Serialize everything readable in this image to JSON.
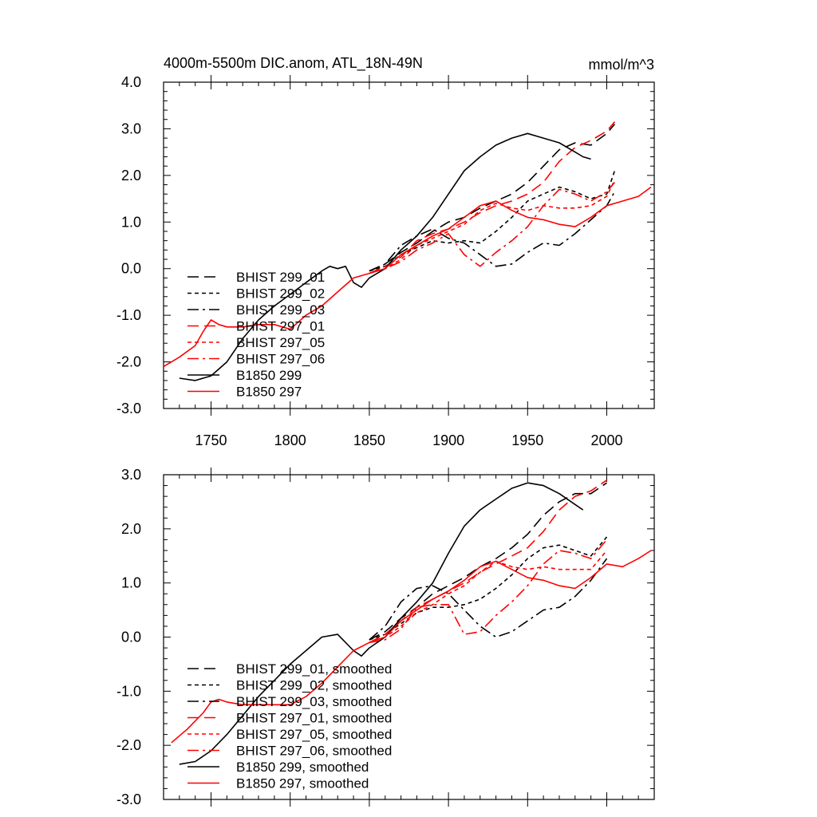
{
  "chart_data": [
    {
      "type": "line",
      "title": "4000m-5500m DIC.anom, ATL_18N-49N",
      "units": "mmol/m^3",
      "xlim": [
        1720,
        2030
      ],
      "ylim": [
        -3.0,
        4.0
      ],
      "xticks": [
        1750,
        1800,
        1850,
        1900,
        1950,
        2000
      ],
      "yticks": [
        -3.0,
        -2.0,
        -1.0,
        0.0,
        1.0,
        2.0,
        3.0,
        4.0
      ],
      "ytick_labels": [
        "-3.0",
        "-2.0",
        "-1.0",
        "0.0",
        "1.0",
        "2.0",
        "3.0",
        "4.0"
      ],
      "legend_position": "lower-left",
      "series": [
        {
          "name": "BHIST 299_01",
          "color": "#000000",
          "dash": "long-dash",
          "x": [
            1850,
            1860,
            1870,
            1880,
            1890,
            1900,
            1910,
            1920,
            1930,
            1940,
            1950,
            1960,
            1970,
            1980,
            1990,
            2000,
            2005
          ],
          "y": [
            -0.05,
            0.1,
            0.35,
            0.55,
            0.8,
            1.0,
            1.1,
            1.3,
            1.45,
            1.6,
            1.85,
            2.2,
            2.55,
            2.7,
            2.65,
            2.9,
            3.1
          ]
        },
        {
          "name": "BHIST 299_02",
          "color": "#000000",
          "dash": "short-dash",
          "x": [
            1850,
            1860,
            1870,
            1880,
            1890,
            1900,
            1910,
            1920,
            1930,
            1940,
            1950,
            1960,
            1970,
            1980,
            1990,
            2000,
            2005
          ],
          "y": [
            -0.05,
            0.05,
            0.3,
            0.45,
            0.6,
            0.55,
            0.6,
            0.55,
            0.8,
            1.1,
            1.45,
            1.6,
            1.75,
            1.65,
            1.5,
            1.6,
            2.1
          ]
        },
        {
          "name": "BHIST 299_03",
          "color": "#000000",
          "dash": "dash-dot",
          "x": [
            1850,
            1860,
            1870,
            1880,
            1890,
            1900,
            1910,
            1920,
            1930,
            1940,
            1950,
            1960,
            1970,
            1980,
            1990,
            2000,
            2005
          ],
          "y": [
            -0.05,
            0.1,
            0.5,
            0.7,
            0.85,
            0.65,
            0.55,
            0.3,
            0.05,
            0.1,
            0.35,
            0.55,
            0.5,
            0.75,
            1.05,
            1.35,
            1.65
          ]
        },
        {
          "name": "BHIST 297_01",
          "color": "#ff0000",
          "dash": "long-dash",
          "x": [
            1850,
            1860,
            1870,
            1880,
            1890,
            1900,
            1910,
            1920,
            1930,
            1940,
            1950,
            1960,
            1970,
            1980,
            1990,
            2000,
            2005
          ],
          "y": [
            -0.1,
            0.05,
            0.25,
            0.6,
            0.75,
            0.85,
            1.0,
            1.2,
            1.35,
            1.45,
            1.6,
            1.85,
            2.3,
            2.6,
            2.75,
            2.95,
            3.15
          ]
        },
        {
          "name": "BHIST 297_05",
          "color": "#ff0000",
          "dash": "short-dash",
          "x": [
            1850,
            1860,
            1870,
            1880,
            1890,
            1900,
            1910,
            1920,
            1930,
            1940,
            1950,
            1960,
            1970,
            1980,
            1990,
            2000,
            2005
          ],
          "y": [
            -0.1,
            0.0,
            0.2,
            0.5,
            0.65,
            0.8,
            0.95,
            1.25,
            1.4,
            1.3,
            1.25,
            1.35,
            1.3,
            1.3,
            1.35,
            1.55,
            1.9
          ]
        },
        {
          "name": "BHIST 297_06",
          "color": "#ff0000",
          "dash": "dash-dot",
          "x": [
            1850,
            1860,
            1870,
            1880,
            1890,
            1900,
            1910,
            1920,
            1930,
            1940,
            1950,
            1960,
            1970,
            1980,
            1990,
            2000,
            2005
          ],
          "y": [
            -0.1,
            0.0,
            0.15,
            0.4,
            0.55,
            0.75,
            0.3,
            0.05,
            0.35,
            0.6,
            0.9,
            1.35,
            1.7,
            1.6,
            1.45,
            1.65,
            1.85
          ]
        },
        {
          "name": "B1850 299",
          "color": "#000000",
          "dash": "solid",
          "x": [
            1730,
            1740,
            1750,
            1760,
            1770,
            1780,
            1790,
            1800,
            1810,
            1820,
            1825,
            1830,
            1835,
            1840,
            1845,
            1850,
            1860,
            1870,
            1880,
            1890,
            1900,
            1910,
            1920,
            1930,
            1940,
            1950,
            1960,
            1970,
            1980,
            1985,
            1990
          ],
          "y": [
            -2.35,
            -2.4,
            -2.3,
            -2.0,
            -1.5,
            -1.1,
            -0.8,
            -0.55,
            -0.3,
            -0.05,
            0.05,
            0.0,
            0.05,
            -0.3,
            -0.4,
            -0.2,
            0.0,
            0.4,
            0.7,
            1.1,
            1.6,
            2.1,
            2.4,
            2.65,
            2.8,
            2.9,
            2.8,
            2.7,
            2.5,
            2.4,
            2.35
          ]
        },
        {
          "name": "B1850 297",
          "color": "#ff0000",
          "dash": "solid",
          "x": [
            1720,
            1730,
            1740,
            1745,
            1750,
            1755,
            1760,
            1770,
            1780,
            1790,
            1800,
            1810,
            1820,
            1830,
            1840,
            1850,
            1860,
            1870,
            1880,
            1890,
            1900,
            1910,
            1920,
            1930,
            1940,
            1950,
            1960,
            1970,
            1980,
            1990,
            2000,
            2010,
            2020,
            2028
          ],
          "y": [
            -2.1,
            -1.9,
            -1.65,
            -1.35,
            -1.1,
            -1.2,
            -1.25,
            -1.25,
            -1.2,
            -1.2,
            -1.3,
            -1.0,
            -0.8,
            -0.5,
            -0.2,
            -0.1,
            0.0,
            0.3,
            0.5,
            0.7,
            0.85,
            1.1,
            1.35,
            1.45,
            1.25,
            1.1,
            1.05,
            0.95,
            0.9,
            1.1,
            1.35,
            1.45,
            1.55,
            1.75
          ]
        }
      ]
    },
    {
      "type": "line",
      "xlim": [
        1720,
        2030
      ],
      "ylim": [
        -3.0,
        3.0
      ],
      "xticks": [
        1750,
        1800,
        1850,
        1900,
        1950,
        2000
      ],
      "yticks": [
        -3.0,
        -2.0,
        -1.0,
        0.0,
        1.0,
        2.0,
        3.0
      ],
      "ytick_labels": [
        "-3.0",
        "-2.0",
        "-1.0",
        "0.0",
        "1.0",
        "2.0",
        "3.0"
      ],
      "legend_position": "lower-left",
      "series": [
        {
          "name": "BHIST 299_01, smoothed",
          "color": "#000000",
          "dash": "long-dash",
          "x": [
            1850,
            1860,
            1870,
            1880,
            1890,
            1900,
            1910,
            1920,
            1930,
            1940,
            1950,
            1960,
            1970,
            1980,
            1990,
            2000
          ],
          "y": [
            -0.05,
            0.1,
            0.35,
            0.55,
            0.8,
            0.95,
            1.1,
            1.3,
            1.45,
            1.65,
            1.9,
            2.25,
            2.5,
            2.65,
            2.65,
            2.85
          ]
        },
        {
          "name": "BHIST 299_02, smoothed",
          "color": "#000000",
          "dash": "short-dash",
          "x": [
            1850,
            1860,
            1870,
            1880,
            1890,
            1900,
            1910,
            1920,
            1930,
            1940,
            1950,
            1960,
            1970,
            1980,
            1990,
            2000
          ],
          "y": [
            -0.05,
            0.05,
            0.25,
            0.45,
            0.55,
            0.55,
            0.6,
            0.7,
            0.9,
            1.15,
            1.45,
            1.65,
            1.7,
            1.6,
            1.5,
            1.85
          ]
        },
        {
          "name": "BHIST 299_03, smoothed",
          "color": "#000000",
          "dash": "dash-dot",
          "x": [
            1850,
            1860,
            1870,
            1880,
            1890,
            1900,
            1910,
            1920,
            1930,
            1940,
            1950,
            1960,
            1970,
            1980,
            1990,
            2000
          ],
          "y": [
            -0.05,
            0.2,
            0.65,
            0.9,
            0.95,
            0.8,
            0.5,
            0.2,
            0.0,
            0.1,
            0.3,
            0.5,
            0.55,
            0.75,
            1.05,
            1.45
          ]
        },
        {
          "name": "BHIST 297_01, smoothed",
          "color": "#ff0000",
          "dash": "long-dash",
          "x": [
            1850,
            1860,
            1870,
            1880,
            1890,
            1900,
            1910,
            1920,
            1930,
            1940,
            1950,
            1960,
            1970,
            1980,
            1990,
            2000
          ],
          "y": [
            -0.1,
            0.05,
            0.3,
            0.55,
            0.7,
            0.85,
            1.0,
            1.2,
            1.35,
            1.5,
            1.65,
            1.95,
            2.35,
            2.6,
            2.7,
            2.9
          ]
        },
        {
          "name": "BHIST 297_05, smoothed",
          "color": "#ff0000",
          "dash": "short-dash",
          "x": [
            1850,
            1860,
            1870,
            1880,
            1890,
            1900,
            1910,
            1920,
            1930,
            1940,
            1950,
            1960,
            1970,
            1980,
            1990,
            2000
          ],
          "y": [
            -0.1,
            0.0,
            0.2,
            0.45,
            0.6,
            0.8,
            0.95,
            1.2,
            1.4,
            1.3,
            1.25,
            1.3,
            1.25,
            1.25,
            1.25,
            1.6
          ]
        },
        {
          "name": "BHIST 297_06, smoothed",
          "color": "#ff0000",
          "dash": "dash-dot",
          "x": [
            1850,
            1860,
            1870,
            1880,
            1890,
            1900,
            1910,
            1920,
            1930,
            1940,
            1950,
            1960,
            1970,
            1980,
            1990,
            2000
          ],
          "y": [
            -0.1,
            -0.05,
            0.15,
            0.55,
            0.6,
            0.6,
            0.05,
            0.1,
            0.4,
            0.65,
            0.95,
            1.35,
            1.6,
            1.55,
            1.45,
            1.8
          ]
        },
        {
          "name": "B1850 299, smoothed",
          "color": "#000000",
          "dash": "solid",
          "x": [
            1730,
            1740,
            1750,
            1760,
            1770,
            1780,
            1790,
            1800,
            1810,
            1820,
            1830,
            1840,
            1845,
            1850,
            1860,
            1870,
            1880,
            1890,
            1900,
            1910,
            1920,
            1930,
            1940,
            1950,
            1960,
            1970,
            1980,
            1985
          ],
          "y": [
            -2.35,
            -2.3,
            -2.1,
            -1.8,
            -1.45,
            -1.1,
            -0.8,
            -0.5,
            -0.25,
            0.0,
            0.05,
            -0.25,
            -0.35,
            -0.2,
            0.0,
            0.35,
            0.65,
            1.0,
            1.55,
            2.05,
            2.35,
            2.55,
            2.75,
            2.85,
            2.8,
            2.65,
            2.45,
            2.35
          ]
        },
        {
          "name": "B1850 297, smoothed",
          "color": "#ff0000",
          "dash": "solid",
          "x": [
            1725,
            1735,
            1745,
            1750,
            1755,
            1760,
            1770,
            1780,
            1790,
            1800,
            1810,
            1820,
            1830,
            1840,
            1850,
            1860,
            1870,
            1880,
            1890,
            1900,
            1910,
            1920,
            1930,
            1940,
            1950,
            1960,
            1970,
            1980,
            1990,
            2000,
            2010,
            2020,
            2028
          ],
          "y": [
            -1.95,
            -1.7,
            -1.4,
            -1.2,
            -1.15,
            -1.2,
            -1.25,
            -1.25,
            -1.25,
            -1.25,
            -1.1,
            -0.85,
            -0.55,
            -0.25,
            -0.1,
            0.0,
            0.3,
            0.5,
            0.7,
            0.85,
            1.05,
            1.3,
            1.4,
            1.25,
            1.1,
            1.05,
            0.95,
            0.9,
            1.1,
            1.35,
            1.3,
            1.45,
            1.6
          ]
        }
      ]
    }
  ]
}
